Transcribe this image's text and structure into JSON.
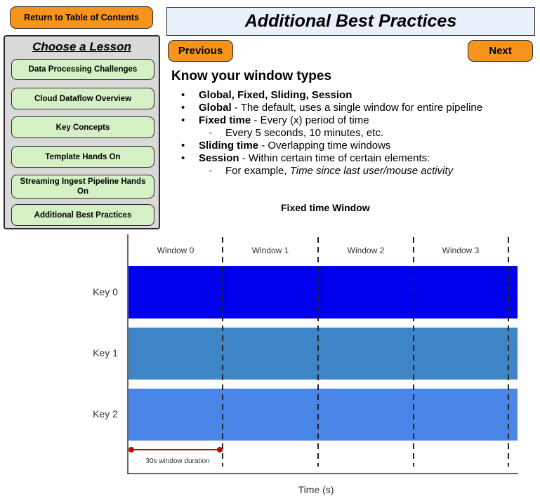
{
  "nav": {
    "toc_label": "Return to Table of Contents",
    "previous_label": "Previous",
    "next_label": "Next"
  },
  "page_title": "Additional Best Practices",
  "lesson_panel": {
    "heading": "Choose a Lesson",
    "items": [
      {
        "label": "Data Processing Challenges"
      },
      {
        "label": "Cloud Dataflow Overview"
      },
      {
        "label": "Key Concepts"
      },
      {
        "label": "Template Hands On"
      },
      {
        "label": "Streaming Ingest Pipeline Hands On"
      },
      {
        "label": "Additional Best Practices"
      }
    ]
  },
  "content": {
    "heading": "Know your window types",
    "bullets": {
      "b1": {
        "bold": "Global, Fixed, Sliding, Session",
        "text": ""
      },
      "b2": {
        "bold": "Global",
        "text": " - The default, uses a single window for entire pipeline"
      },
      "b3": {
        "bold": "Fixed time",
        "text": " - Every (x) period of time"
      },
      "b3_sub": {
        "text": "Every 5 seconds, 10 minutes, etc."
      },
      "b4": {
        "bold": "Sliding time",
        "text": " - Overlapping time windows"
      },
      "b5": {
        "bold": "Session",
        "text": " - Within certain time of certain elements:"
      },
      "b5_sub": {
        "prefix": "For example, ",
        "italic": "Time since last user/mouse activity"
      }
    },
    "bullet_glyph": "•",
    "sub_bullet_glyph": "◦"
  },
  "diagram": {
    "title": "Fixed time Window",
    "windows": [
      "Window 0",
      "Window 1",
      "Window 2",
      "Window 3"
    ],
    "keys": [
      {
        "label": "Key 0",
        "color": "#0000ee"
      },
      {
        "label": "Key 1",
        "color": "#3d85c6"
      },
      {
        "label": "Key 2",
        "color": "#4a86e8"
      }
    ],
    "duration_label": "30s window duration",
    "duration_color": "#cc0000",
    "x_label": "Time (s)"
  }
}
